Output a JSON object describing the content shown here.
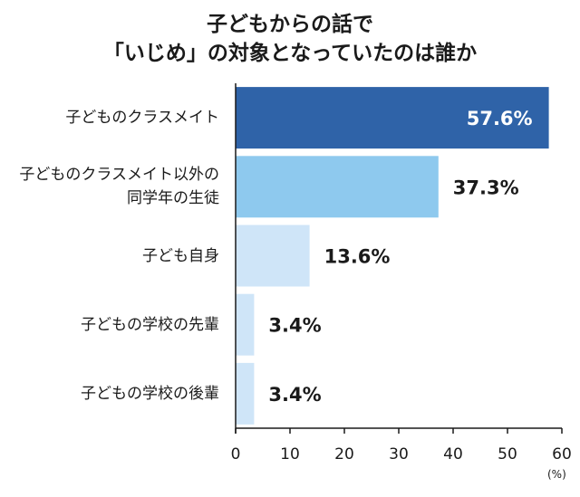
{
  "chart_data": {
    "type": "bar",
    "orientation": "horizontal",
    "title": [
      "子どもからの話で",
      "「いじめ」の対象となっていたのは誰か"
    ],
    "categories": [
      [
        "子どものクラスメイト"
      ],
      [
        "子どものクラスメイト以外の",
        "同学年の生徒"
      ],
      [
        "子ども自身"
      ],
      [
        "子どもの学校の先輩"
      ],
      [
        "子どもの学校の後輩"
      ]
    ],
    "values": [
      57.6,
      37.3,
      13.6,
      3.4,
      3.4
    ],
    "value_labels": [
      "57.6%",
      "37.3%",
      "13.6%",
      "3.4%",
      "3.4%"
    ],
    "bar_colors": [
      "#2f63a8",
      "#8ec9ee",
      "#cfe5f8",
      "#cfe5f8",
      "#cfe5f8"
    ],
    "xlim": [
      0,
      60
    ],
    "xticks": [
      0,
      10,
      20,
      30,
      40,
      50,
      60
    ],
    "x_unit": "(%)",
    "grid": false,
    "legend": "none"
  }
}
